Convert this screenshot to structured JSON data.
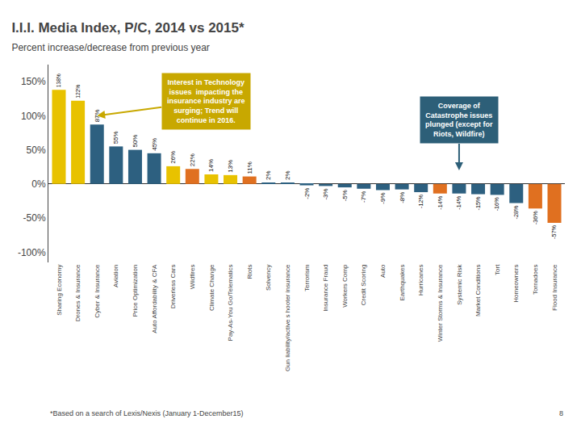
{
  "chart_data": {
    "type": "bar",
    "title": "I.I.I. Media Index, P/C, 2014 vs 2015*",
    "subtitle": "Percent increase/decrease from previous year",
    "categories": [
      "Sharing Economy",
      "Drones & Insurance",
      "Cyber & Insurance",
      "Aviation",
      "Price Optimization",
      "Auto Affordability & CFA",
      "Driverless Cars",
      "Wildfires",
      "Climate Change",
      "Pay-As-You Go/Telematics",
      "Riots",
      "Solvency",
      "Gun liability/active s hooter insurance",
      "Terrorism",
      "Insurance Fraud",
      "Workers Comp",
      "Credit Scoring",
      "Auto",
      "Earthquakes",
      "Hurricanes",
      "Winter Storms & Insurance",
      "Systemic Risk",
      "Market Conditions",
      "Tort",
      "Homeowners",
      "Tornadoes",
      "Flood Insurance"
    ],
    "values": [
      138,
      122,
      87,
      55,
      50,
      45,
      26,
      22,
      14,
      13,
      11,
      2,
      2,
      -2,
      -3,
      -5,
      -7,
      -9,
      -8,
      -12,
      -14,
      -14,
      -15,
      -16,
      -28,
      -36,
      -57
    ],
    "value_labels": [
      "138%",
      "122%",
      "87%",
      "55%",
      "50%",
      "45%",
      "26%",
      "22%",
      "14%",
      "13%",
      "11%",
      "2%",
      "2%",
      "-2%",
      "-3%",
      "-5%",
      "-7%",
      "-9%",
      "-8%",
      "-12%",
      "-14%",
      "-14%",
      "-15%",
      "-16%",
      "-28%",
      "-36%",
      "-57%"
    ],
    "colors": [
      "#e8c200",
      "#e8c200",
      "#2d6080",
      "#2d6080",
      "#2d6080",
      "#2d6080",
      "#e8c200",
      "#e07020",
      "#e8c200",
      "#e8c200",
      "#e07020",
      "#2d6080",
      "#2d6080",
      "#2d6080",
      "#2d6080",
      "#2d6080",
      "#2d6080",
      "#2d6080",
      "#2d6080",
      "#2d6080",
      "#e07020",
      "#2d6080",
      "#2d6080",
      "#2d6080",
      "#2d6080",
      "#e07020",
      "#e07020"
    ],
    "ylim": [
      -115,
      175
    ],
    "yticks": [
      {
        "value": -100,
        "label": "-100%"
      },
      {
        "value": -50,
        "label": "-50%"
      },
      {
        "value": 0,
        "label": "0%"
      },
      {
        "value": 50,
        "label": "50%"
      },
      {
        "value": 100,
        "label": "100%"
      },
      {
        "value": 150,
        "label": "150%"
      }
    ],
    "grid": false,
    "data_labels": true,
    "annotations": [
      {
        "text": "Interest in Technology\nissues  impacting the\ninsurance industry are\nsurging; Trend will\ncontinue in 2016.",
        "color": "#c8a800"
      },
      {
        "text": "Coverage of\nCatastrophe issues\nplunged (except for\nRiots, Wildfire)",
        "color": "#2d5f78"
      },
      {
        "text": "*Based on a search of Lexis/Nexis (January 1-December15)"
      },
      {
        "text": "8"
      }
    ]
  }
}
